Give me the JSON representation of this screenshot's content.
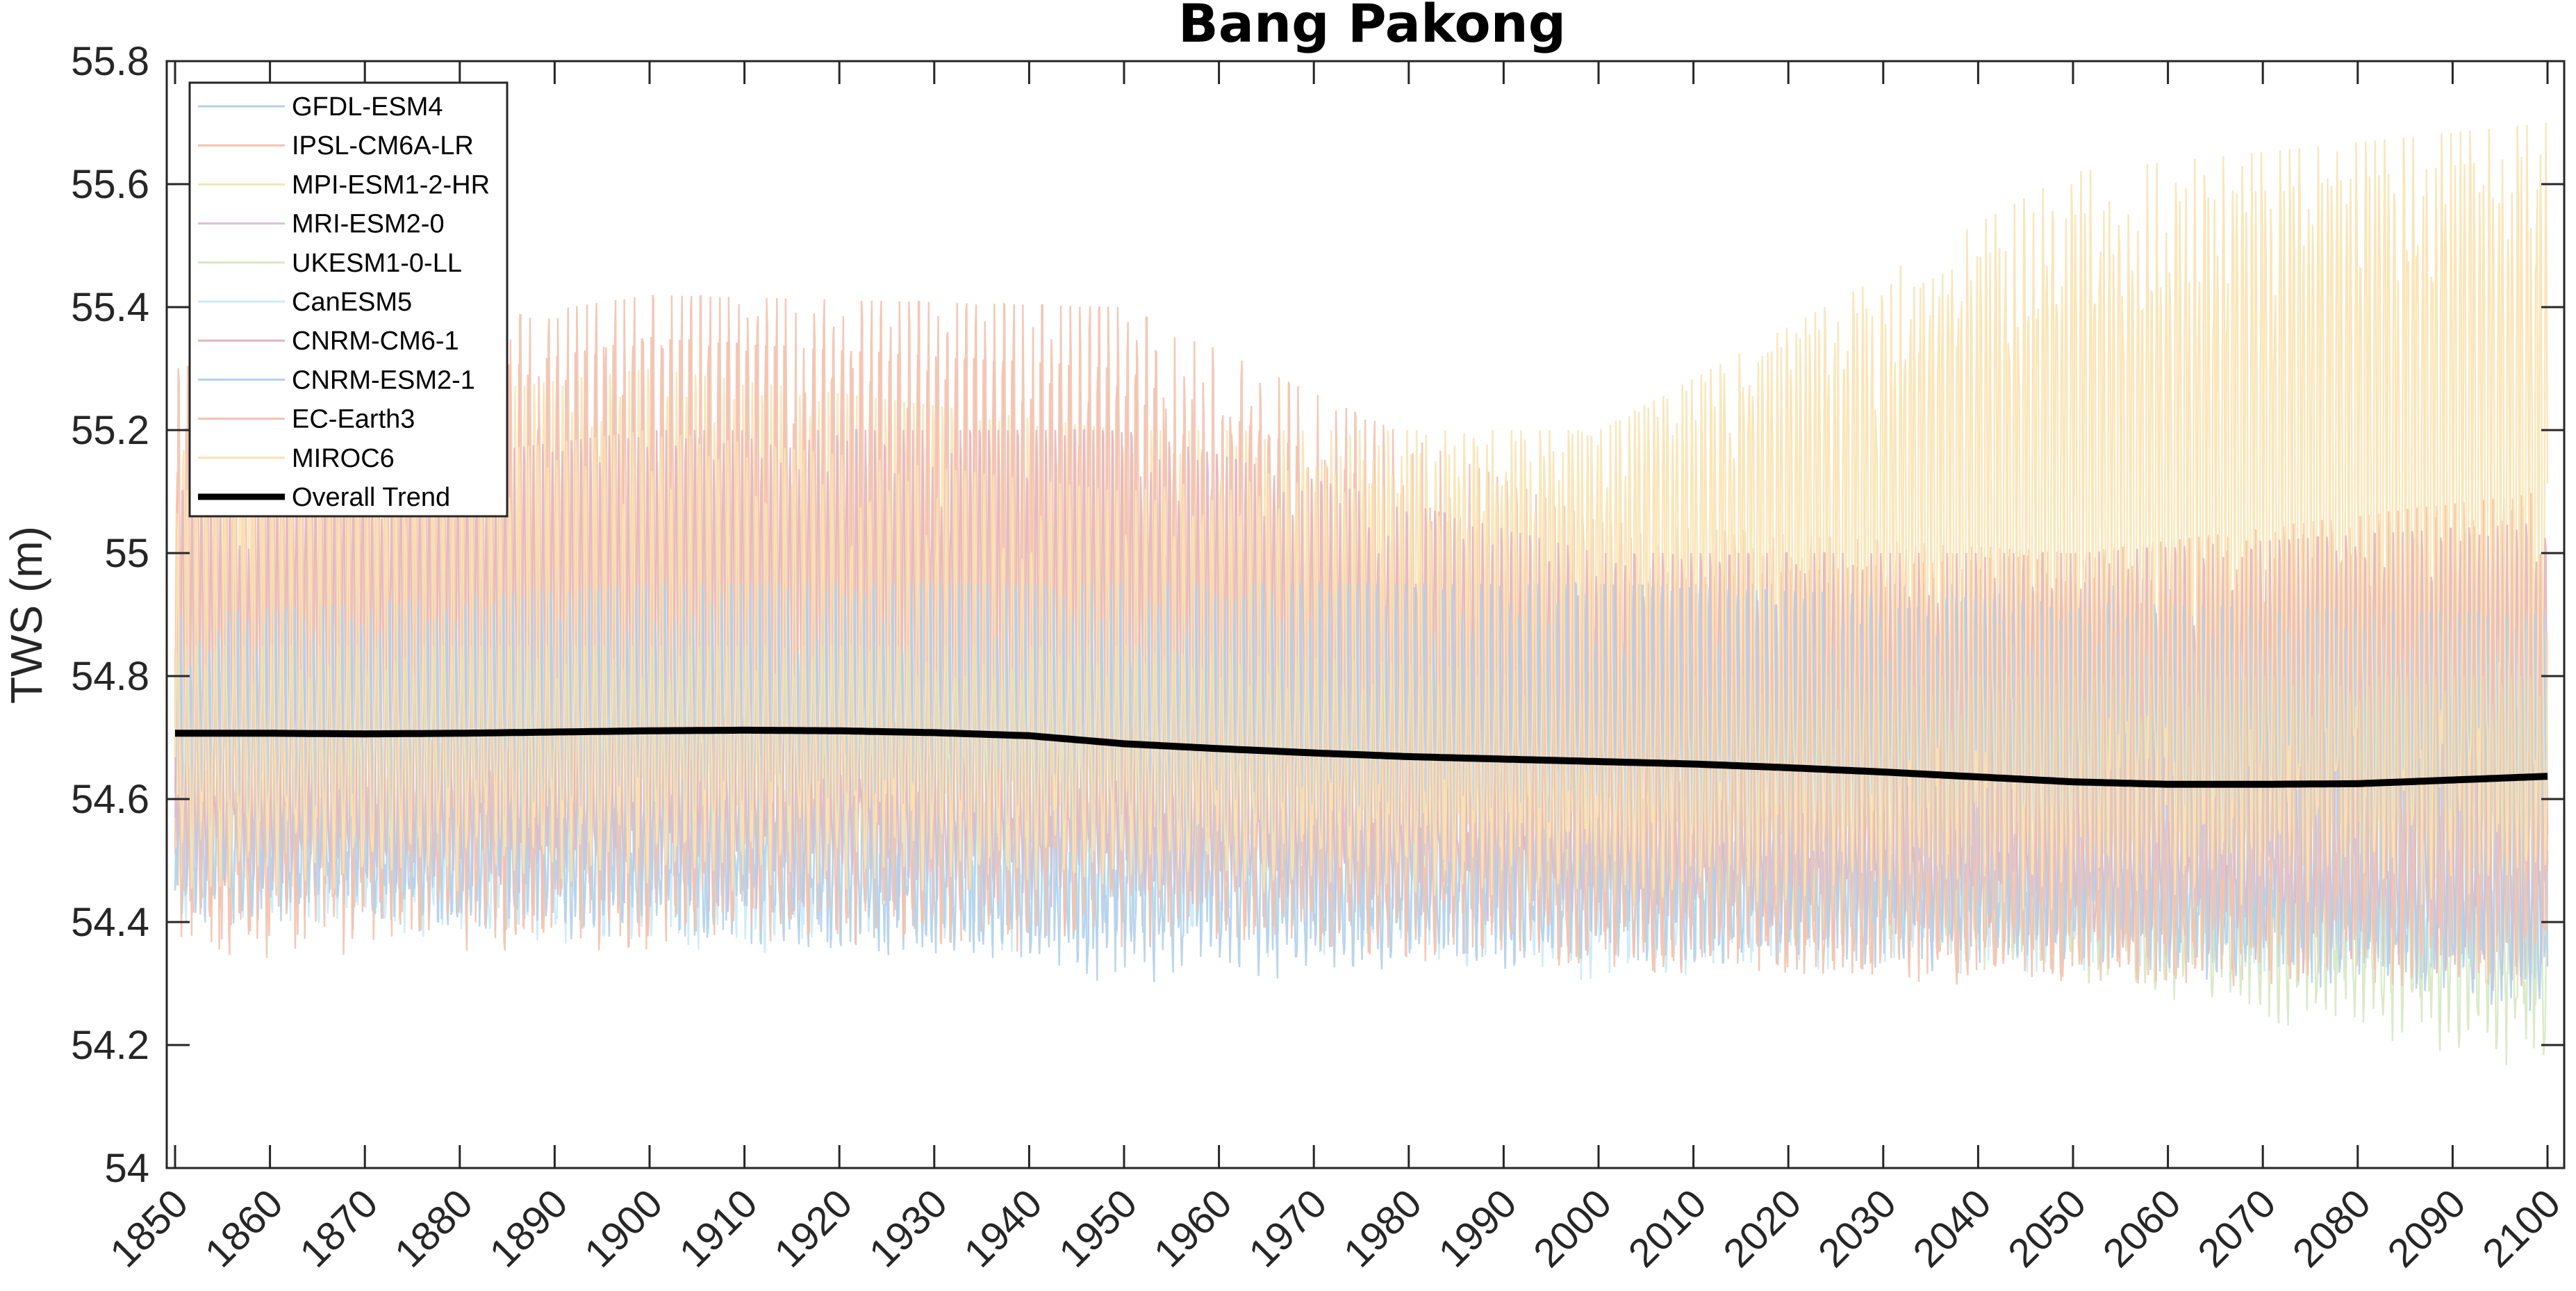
{
  "chart_data": {
    "type": "line",
    "title": "Bang Pakong",
    "xlabel": "",
    "ylabel": "TWS (m)",
    "xlim": [
      1849,
      2101.5
    ],
    "ylim": [
      54,
      55.8
    ],
    "x_ticks": [
      1850,
      1860,
      1870,
      1880,
      1890,
      1900,
      1910,
      1920,
      1930,
      1940,
      1950,
      1960,
      1970,
      1980,
      1990,
      2000,
      2010,
      2020,
      2030,
      2040,
      2050,
      2060,
      2070,
      2080,
      2090,
      2100
    ],
    "x_tick_labels": [
      "1850",
      "1860",
      "1870",
      "1880",
      "1890",
      "1900",
      "1910",
      "1920",
      "1930",
      "1940",
      "1950",
      "1960",
      "1970",
      "1980",
      "1990",
      "2000",
      "2010",
      "2020",
      "2030",
      "2040",
      "2050",
      "2060",
      "2070",
      "2080",
      "2090",
      "2100"
    ],
    "x_tick_rotation": 45,
    "y_ticks": [
      54,
      54.2,
      54.4,
      54.6,
      54.8,
      55,
      55.2,
      55.4,
      55.6,
      55.8
    ],
    "y_tick_labels": [
      "54",
      "54.2",
      "54.4",
      "54.6",
      "54.8",
      "55",
      "55.2",
      "55.4",
      "55.6",
      "55.8"
    ],
    "grid": false,
    "box": true,
    "legend_position": "northwest",
    "series_resolution": "monthly",
    "series": [
      {
        "name": "GFDL-ESM4",
        "color": "#b3d0ea",
        "period": [
          1850,
          2100
        ],
        "envelope": {
          "x": [
            1850,
            1900,
            1950,
            2000,
            2050,
            2100
          ],
          "min": [
            54.4,
            54.36,
            54.35,
            54.33,
            54.33,
            54.28
          ],
          "max": [
            54.9,
            54.95,
            54.98,
            54.95,
            54.95,
            54.92
          ]
        }
      },
      {
        "name": "IPSL-CM6A-LR",
        "color": "#f3c2ae",
        "period": [
          1850,
          2100
        ],
        "envelope": {
          "x": [
            1850,
            1900,
            1950,
            2000,
            2050,
            2100
          ],
          "min": [
            54.35,
            54.35,
            54.37,
            54.32,
            54.29,
            54.3
          ],
          "max": [
            55.3,
            55.42,
            55.4,
            55.05,
            55.0,
            55.1
          ]
        }
      },
      {
        "name": "MPI-ESM1-2-HR",
        "color": "#f9e3b2",
        "period": [
          1850,
          2100
        ],
        "envelope": {
          "x": [
            1850,
            1900,
            1950,
            2000,
            2050,
            2100
          ],
          "min": [
            54.45,
            54.45,
            54.45,
            54.42,
            54.42,
            54.4
          ],
          "max": [
            55.2,
            55.3,
            55.2,
            55.2,
            55.62,
            55.7
          ]
        }
      },
      {
        "name": "MRI-ESM2-0",
        "color": "#d8c0de",
        "period": [
          1850,
          2100
        ],
        "envelope": {
          "x": [
            1850,
            1900,
            1950,
            2000,
            2050,
            2100
          ],
          "min": [
            54.45,
            54.45,
            54.45,
            54.42,
            54.4,
            54.38
          ],
          "max": [
            54.95,
            54.98,
            55.0,
            54.95,
            54.95,
            55.0
          ]
        }
      },
      {
        "name": "UKESM1-0-LL",
        "color": "#d6e8c2",
        "period": [
          1850,
          2100
        ],
        "envelope": {
          "x": [
            1850,
            1900,
            1950,
            2000,
            2050,
            2100
          ],
          "min": [
            54.5,
            54.5,
            54.48,
            54.42,
            54.3,
            54.15
          ],
          "max": [
            54.85,
            54.85,
            54.85,
            54.8,
            54.8,
            54.8
          ]
        }
      },
      {
        "name": "CanESM5",
        "color": "#c8ebf9",
        "period": [
          1850,
          2100
        ],
        "envelope": {
          "x": [
            1850,
            1900,
            1950,
            2000,
            2050,
            2100
          ],
          "min": [
            54.4,
            54.35,
            54.35,
            54.3,
            54.32,
            54.3
          ],
          "max": [
            54.85,
            54.9,
            54.9,
            54.88,
            54.85,
            54.85
          ]
        }
      },
      {
        "name": "CNRM-CM6-1",
        "color": "#e3b5bf",
        "period": [
          1850,
          2100
        ],
        "envelope": {
          "x": [
            1850,
            1900,
            1950,
            2000,
            2050,
            2100
          ],
          "min": [
            54.45,
            54.42,
            54.4,
            54.38,
            54.35,
            54.28
          ],
          "max": [
            55.1,
            55.2,
            55.2,
            55.0,
            55.0,
            55.05
          ]
        }
      },
      {
        "name": "CNRM-ESM2-1",
        "color": "#b3d0ea",
        "period": [
          1850,
          2100
        ],
        "envelope": {
          "x": [
            1850,
            1900,
            1950,
            2000,
            2050,
            2100
          ],
          "min": [
            54.4,
            54.38,
            54.3,
            54.32,
            54.32,
            54.25
          ],
          "max": [
            54.9,
            54.95,
            54.95,
            54.95,
            54.92,
            54.9
          ]
        }
      },
      {
        "name": "EC-Earth3",
        "color": "#f3c2ae",
        "period": [
          1850,
          2100
        ],
        "envelope": {
          "x": [
            1850,
            1900,
            1950,
            2000,
            2050,
            2100
          ],
          "min": [
            54.33,
            54.35,
            54.35,
            54.32,
            54.28,
            54.3
          ],
          "max": [
            55.2,
            55.35,
            55.3,
            54.95,
            55.0,
            55.1
          ]
        }
      },
      {
        "name": "MIROC6",
        "color": "#f9e3b2",
        "period": [
          1850,
          2100
        ],
        "envelope": {
          "x": [
            1850,
            1900,
            1950,
            2000,
            2050,
            2100
          ],
          "min": [
            54.45,
            54.45,
            54.45,
            54.42,
            54.42,
            54.42
          ],
          "max": [
            55.1,
            55.2,
            55.1,
            55.2,
            55.55,
            55.65
          ]
        }
      }
    ],
    "trend": {
      "name": "Overall Trend",
      "color": "#000000",
      "line_width": 8,
      "x": [
        1850,
        1860,
        1870,
        1880,
        1890,
        1900,
        1910,
        1920,
        1930,
        1940,
        1950,
        1960,
        1970,
        1980,
        1990,
        2000,
        2010,
        2020,
        2030,
        2040,
        2050,
        2060,
        2070,
        2080,
        2090,
        2100
      ],
      "y": [
        54.707,
        54.707,
        54.706,
        54.707,
        54.709,
        54.711,
        54.712,
        54.711,
        54.708,
        54.703,
        54.69,
        54.682,
        54.675,
        54.669,
        54.665,
        54.661,
        54.657,
        54.651,
        54.644,
        54.636,
        54.628,
        54.624,
        54.624,
        54.625,
        54.631,
        54.637
      ]
    }
  },
  "legend": {
    "items": [
      {
        "label": "GFDL-ESM4",
        "color": "#b3d0ea",
        "thick": false
      },
      {
        "label": "IPSL-CM6A-LR",
        "color": "#f3c2ae",
        "thick": false
      },
      {
        "label": "MPI-ESM1-2-HR",
        "color": "#f9e3b2",
        "thick": false
      },
      {
        "label": "MRI-ESM2-0",
        "color": "#d8c0de",
        "thick": false
      },
      {
        "label": "UKESM1-0-LL",
        "color": "#d6e8c2",
        "thick": false
      },
      {
        "label": "CanESM5",
        "color": "#c8ebf9",
        "thick": false
      },
      {
        "label": "CNRM-CM6-1",
        "color": "#e3b5bf",
        "thick": false
      },
      {
        "label": "CNRM-ESM2-1",
        "color": "#b3d0ea",
        "thick": false
      },
      {
        "label": "EC-Earth3",
        "color": "#f3c2ae",
        "thick": false
      },
      {
        "label": "MIROC6",
        "color": "#f9e3b2",
        "thick": false
      },
      {
        "label": "Overall Trend",
        "color": "#000000",
        "thick": true
      }
    ]
  }
}
